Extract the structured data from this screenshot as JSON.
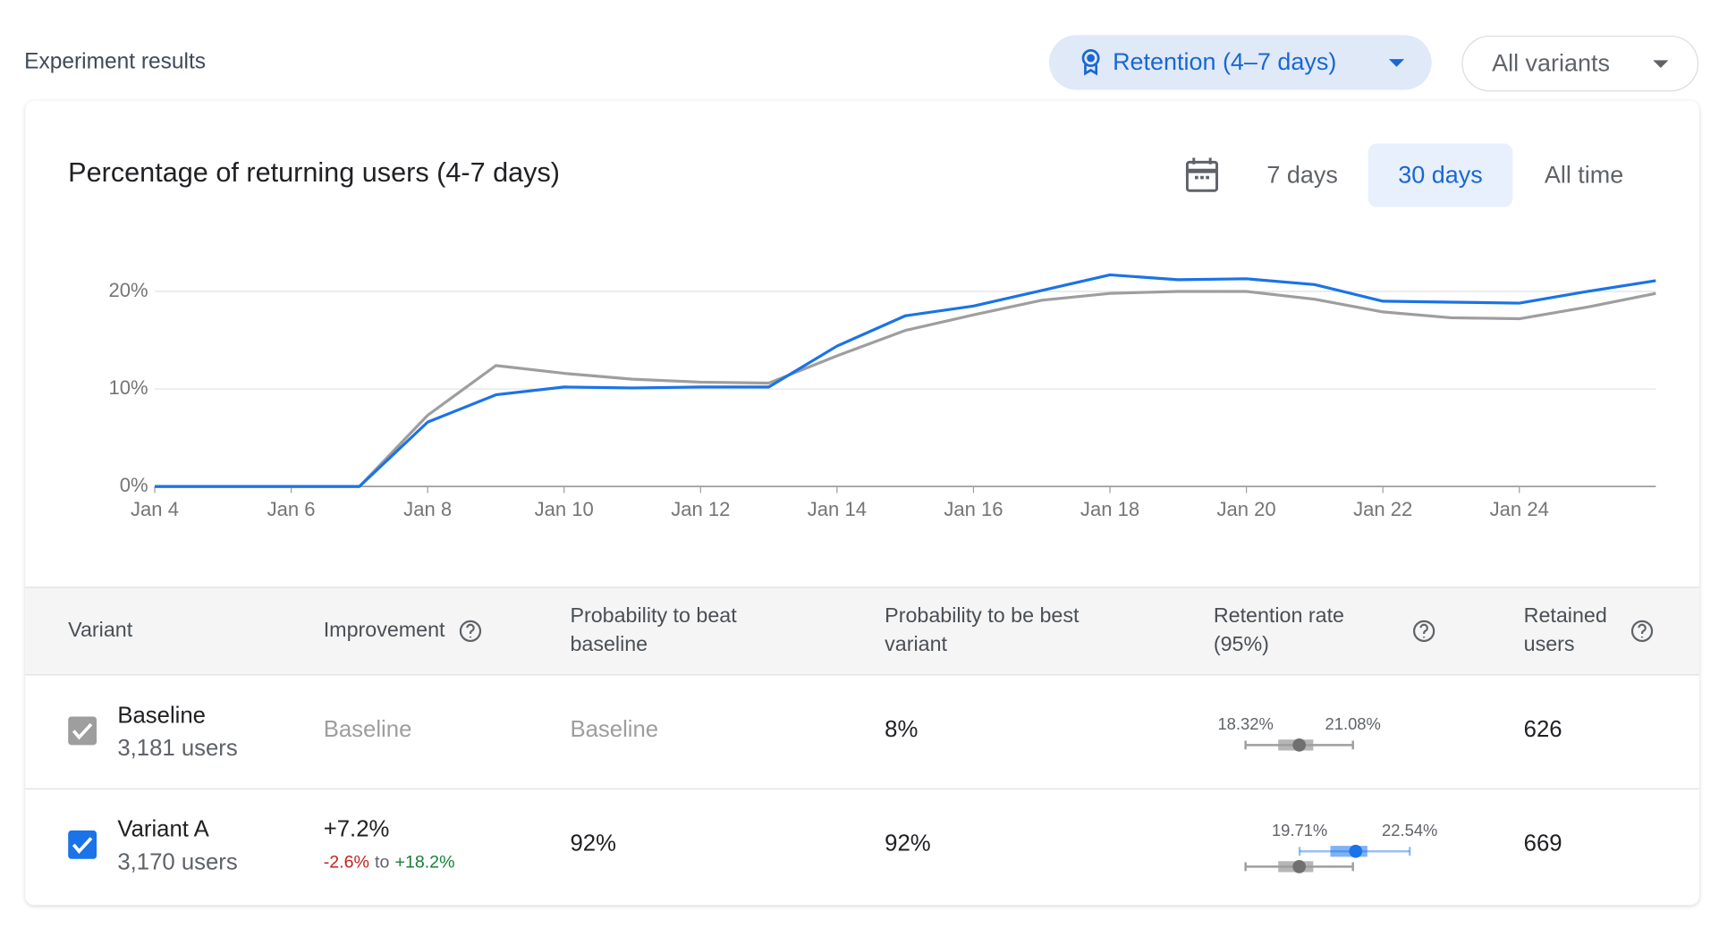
{
  "header": {
    "title": "Experiment results",
    "metric": "Retention (4–7 days)",
    "variants": "All variants"
  },
  "range": {
    "options": [
      "7 days",
      "30 days",
      "All time"
    ],
    "selected": 1
  },
  "chart_data": {
    "type": "line",
    "title": "Percentage of returning users (4-7 days)",
    "categories": [
      "Jan 4",
      null,
      "Jan 6",
      null,
      "Jan 8",
      null,
      "Jan 10",
      null,
      "Jan 12",
      null,
      "Jan 14",
      null,
      "Jan 16",
      null,
      "Jan 18",
      null,
      "Jan 20",
      null,
      "Jan 22",
      null,
      "Jan 24",
      null,
      null
    ],
    "series": [
      {
        "color": "#9e9e9e",
        "values": [
          0,
          0,
          0,
          0,
          7.3,
          12.4,
          11.6,
          11.0,
          10.7,
          10.6,
          13.4,
          16.0,
          17.6,
          19.1,
          19.8,
          20.0,
          20.0,
          19.2,
          17.9,
          17.3,
          17.2,
          18.4,
          19.8
        ]
      },
      {
        "color": "#1a73e8",
        "values": [
          0,
          0,
          0,
          0,
          6.6,
          9.4,
          10.2,
          10.1,
          10.2,
          10.2,
          14.4,
          17.5,
          18.5,
          20.1,
          21.7,
          21.2,
          21.3,
          20.7,
          19.0,
          18.9,
          18.8,
          20.0,
          21.1
        ]
      }
    ],
    "ylim": [
      0,
      25
    ],
    "yticks": [
      {
        "value": 0,
        "label": "0%"
      },
      {
        "value": 10,
        "label": "10%"
      },
      {
        "value": 20,
        "label": "20%"
      }
    ],
    "grid": true
  },
  "table": {
    "columns": [
      [
        "Variant"
      ],
      [
        "Improvement"
      ],
      [
        "Probability to beat",
        "baseline"
      ],
      [
        "Probability to be best",
        "variant"
      ],
      [
        "Retention rate",
        "(95%)"
      ],
      [
        "Retained",
        "users"
      ]
    ],
    "ci_xlim": [
      17.3,
      23.0
    ],
    "rows": [
      {
        "variant": "Baseline",
        "users": "3,181 users",
        "color": "#9e9e9e",
        "improvement": "Baseline",
        "beat": "Baseline",
        "best": "8%",
        "ci": {
          "low": {
            "value": 18.32,
            "label": "18.32%"
          },
          "high": {
            "value": 21.08,
            "label": "21.08%"
          },
          "box": [
            19.16,
            20.06
          ],
          "mid": 19.7
        },
        "retained": "626"
      },
      {
        "variant": "Variant A",
        "users": "3,170 users",
        "color": "#1a73e8",
        "improvement": "+7.2%",
        "improvement_range": [
          "-2.6%",
          "to",
          "+18.2%"
        ],
        "beat": "92%",
        "best": "92%",
        "ci": {
          "low": {
            "value": 19.71,
            "label": "19.71%"
          },
          "high": {
            "value": 22.54,
            "label": "22.54%"
          },
          "box": [
            20.5,
            21.45
          ],
          "mid": 21.15
        },
        "retained": "669"
      }
    ]
  }
}
